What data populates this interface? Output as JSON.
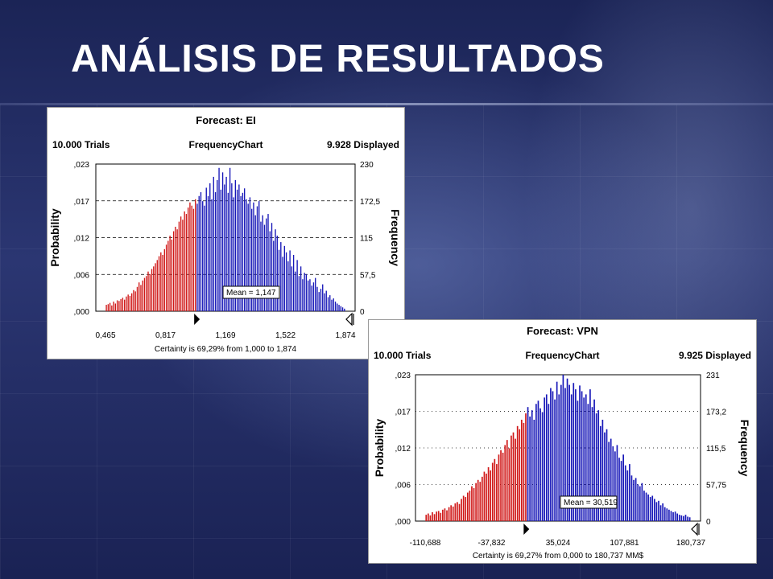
{
  "slide": {
    "title": "ANÁLISIS DE RESULTADOS"
  },
  "colors": {
    "red": "#d01818",
    "blue": "#1818b8",
    "title": "#ffffff"
  },
  "chart_data": [
    {
      "type": "bar",
      "forecast": "Forecast: EI",
      "trials": "10.000 Trials",
      "chart_name": "FrequencyChart",
      "displayed": "9.928 Displayed",
      "ylabel": "Probability",
      "y2label": "Frequency",
      "yticks": [
        ",000",
        ",006",
        ",012",
        ",017",
        ",023"
      ],
      "y2ticks": [
        "0",
        "57,5",
        "115",
        "172,5",
        "230"
      ],
      "xticks": [
        "0,465",
        "0,817",
        "1,169",
        "1,522",
        "1,874"
      ],
      "xlim": [
        0.465,
        1.874
      ],
      "ylim": [
        0,
        230
      ],
      "mean_label": "Mean = 1,147",
      "certainty": "Certainty is 69,29% from 1,000 to 1,874",
      "split_x": 1.0,
      "gridlines": "dashed",
      "values": [
        10,
        11,
        13,
        9,
        15,
        12,
        17,
        16,
        19,
        21,
        18,
        23,
        26,
        24,
        28,
        33,
        31,
        38,
        45,
        41,
        48,
        52,
        55,
        62,
        58,
        66,
        70,
        75,
        80,
        86,
        92,
        88,
        97,
        104,
        110,
        118,
        112,
        125,
        132,
        128,
        140,
        148,
        143,
        156,
        152,
        162,
        170,
        165,
        160,
        175,
        168,
        180,
        186,
        172,
        165,
        193,
        180,
        200,
        175,
        210,
        186,
        205,
        224,
        190,
        217,
        198,
        210,
        185,
        224,
        200,
        178,
        205,
        190,
        198,
        180,
        185,
        192,
        175,
        168,
        178,
        160,
        170,
        150,
        164,
        172,
        140,
        150,
        135,
        145,
        152,
        125,
        138,
        110,
        128,
        118,
        96,
        108,
        85,
        102,
        92,
        78,
        95,
        70,
        88,
        62,
        80,
        55,
        70,
        50,
        60,
        58,
        48,
        50,
        40,
        45,
        52,
        38,
        30,
        35,
        42,
        28,
        32,
        22,
        25,
        18,
        20,
        15,
        12,
        10,
        8,
        6,
        4
      ]
    },
    {
      "type": "bar",
      "forecast": "Forecast: VPN",
      "trials": "10.000 Trials",
      "chart_name": "FrequencyChart",
      "displayed": "9.925 Displayed",
      "ylabel": "Probability",
      "y2label": "Frequency",
      "yticks": [
        ",000",
        ",006",
        ",012",
        ",017",
        ",023"
      ],
      "y2ticks": [
        "0",
        "57,75",
        "115,5",
        "173,2",
        "231"
      ],
      "xticks": [
        "-110,688",
        "-37,832",
        "35,024",
        "107,881",
        "180,737"
      ],
      "xlim": [
        -110.688,
        180.737
      ],
      "ylim": [
        0,
        231
      ],
      "mean_label": "Mean = 30,519",
      "certainty": "Certainty is 69,27% from 0,000 to 180,737 MM$",
      "split_x": 0.0,
      "gridlines": "dotted",
      "values": [
        10,
        12,
        9,
        14,
        11,
        15,
        16,
        13,
        18,
        20,
        17,
        22,
        25,
        23,
        28,
        30,
        27,
        35,
        40,
        38,
        45,
        48,
        55,
        52,
        60,
        65,
        62,
        70,
        78,
        75,
        85,
        80,
        92,
        98,
        90,
        105,
        112,
        108,
        120,
        128,
        115,
        135,
        140,
        130,
        150,
        145,
        160,
        155,
        170,
        180,
        165,
        175,
        160,
        185,
        190,
        178,
        172,
        195,
        200,
        185,
        210,
        205,
        192,
        220,
        200,
        215,
        231,
        210,
        225,
        215,
        200,
        218,
        208,
        190,
        214,
        205,
        195,
        200,
        185,
        208,
        180,
        192,
        170,
        175,
        150,
        160,
        140,
        145,
        125,
        130,
        118,
        110,
        120,
        100,
        95,
        105,
        88,
        80,
        90,
        72,
        65,
        68,
        58,
        55,
        60,
        48,
        45,
        42,
        38,
        40,
        35,
        30,
        32,
        25,
        28,
        22,
        20,
        18,
        16,
        14,
        15,
        12,
        10,
        9,
        8,
        10,
        7,
        6
      ]
    }
  ]
}
